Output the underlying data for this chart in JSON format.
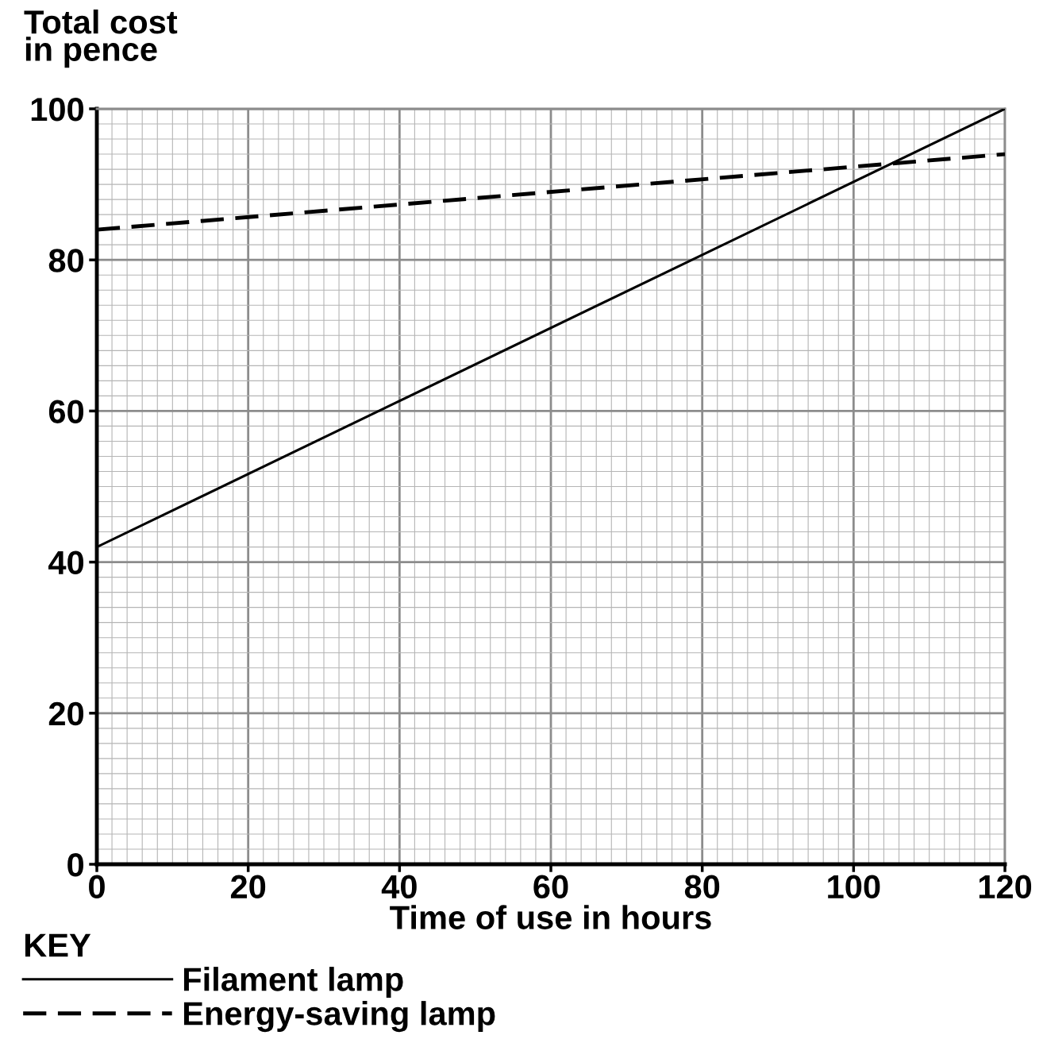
{
  "chart_data": {
    "type": "line",
    "ylabel": "Total cost\nin pence",
    "xlabel": "Time of use in hours",
    "legend_title": "KEY",
    "series": [
      {
        "name": "Filament lamp",
        "color": "#000000",
        "line_style": "solid",
        "values": [
          42,
          100
        ]
      },
      {
        "name": "Energy-saving lamp",
        "color": "#000000",
        "line_style": "dashed",
        "values": [
          84,
          94
        ]
      }
    ],
    "x": [
      0,
      120
    ],
    "xlim": [
      0,
      120
    ],
    "xticks": [
      0,
      20,
      40,
      60,
      80,
      100,
      120
    ],
    "ylim": [
      0,
      100
    ],
    "yticks": [
      0,
      20,
      40,
      60,
      80,
      100
    ],
    "grid": true,
    "legend": "bottom left",
    "marker": "none"
  }
}
